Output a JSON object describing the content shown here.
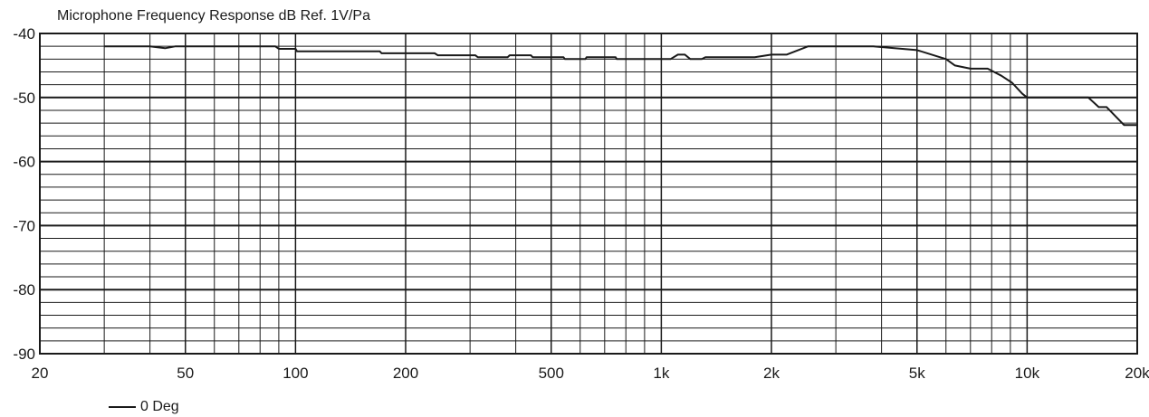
{
  "chart_data": {
    "type": "line",
    "title": "Microphone Frequency Response dB Ref. 1V/Pa",
    "xlabel": "",
    "ylabel": "",
    "x_scale": "log",
    "xlim": [
      20,
      20000
    ],
    "ylim": [
      -90,
      -40
    ],
    "grid": true,
    "legend_position": "bottom-left",
    "line_color": "#1a1a1a",
    "x_ticks": [
      {
        "value": 20,
        "label": "20"
      },
      {
        "value": 50,
        "label": "50"
      },
      {
        "value": 100,
        "label": "100"
      },
      {
        "value": 200,
        "label": "200"
      },
      {
        "value": 500,
        "label": "500"
      },
      {
        "value": 1000,
        "label": "1k"
      },
      {
        "value": 2000,
        "label": "2k"
      },
      {
        "value": 5000,
        "label": "5k"
      },
      {
        "value": 10000,
        "label": "10k"
      },
      {
        "value": 20000,
        "label": "20k"
      }
    ],
    "y_ticks": [
      {
        "value": -40,
        "label": "-40"
      },
      {
        "value": -50,
        "label": "-50"
      },
      {
        "value": -60,
        "label": "-60"
      },
      {
        "value": -70,
        "label": "-70"
      },
      {
        "value": -80,
        "label": "-80"
      },
      {
        "value": -90,
        "label": "-90"
      }
    ],
    "x_minor_grid": [
      30,
      40,
      60,
      70,
      80,
      90,
      300,
      400,
      600,
      700,
      800,
      900,
      3000,
      4000,
      6000,
      7000,
      8000,
      9000
    ],
    "y_minor_step": 2,
    "series": [
      {
        "name": "0 Deg",
        "points": [
          [
            30,
            -42.0
          ],
          [
            40,
            -42.0
          ],
          [
            44,
            -42.3
          ],
          [
            47,
            -42.0
          ],
          [
            60,
            -42.0
          ],
          [
            88,
            -42.0
          ],
          [
            90,
            -42.4
          ],
          [
            100,
            -42.4
          ],
          [
            101,
            -42.8
          ],
          [
            170,
            -42.8
          ],
          [
            172,
            -43.1
          ],
          [
            240,
            -43.1
          ],
          [
            245,
            -43.4
          ],
          [
            310,
            -43.4
          ],
          [
            315,
            -43.7
          ],
          [
            380,
            -43.7
          ],
          [
            385,
            -43.4
          ],
          [
            440,
            -43.4
          ],
          [
            445,
            -43.7
          ],
          [
            540,
            -43.7
          ],
          [
            545,
            -44.0
          ],
          [
            620,
            -44.0
          ],
          [
            625,
            -43.7
          ],
          [
            750,
            -43.7
          ],
          [
            755,
            -44.0
          ],
          [
            1060,
            -44.0
          ],
          [
            1110,
            -43.3
          ],
          [
            1160,
            -43.3
          ],
          [
            1200,
            -44.0
          ],
          [
            1290,
            -44.0
          ],
          [
            1320,
            -43.7
          ],
          [
            1800,
            -43.7
          ],
          [
            2000,
            -43.3
          ],
          [
            2200,
            -43.3
          ],
          [
            2520,
            -42.0
          ],
          [
            3800,
            -42.0
          ],
          [
            5000,
            -42.6
          ],
          [
            6000,
            -44.0
          ],
          [
            6350,
            -45.0
          ],
          [
            7000,
            -45.5
          ],
          [
            7800,
            -45.5
          ],
          [
            8500,
            -46.6
          ],
          [
            9100,
            -47.7
          ],
          [
            9700,
            -49.4
          ],
          [
            10000,
            -50.0
          ],
          [
            14700,
            -50.0
          ],
          [
            15700,
            -51.5
          ],
          [
            16500,
            -51.5
          ],
          [
            18400,
            -54.3
          ],
          [
            20000,
            -54.3
          ]
        ]
      }
    ]
  }
}
